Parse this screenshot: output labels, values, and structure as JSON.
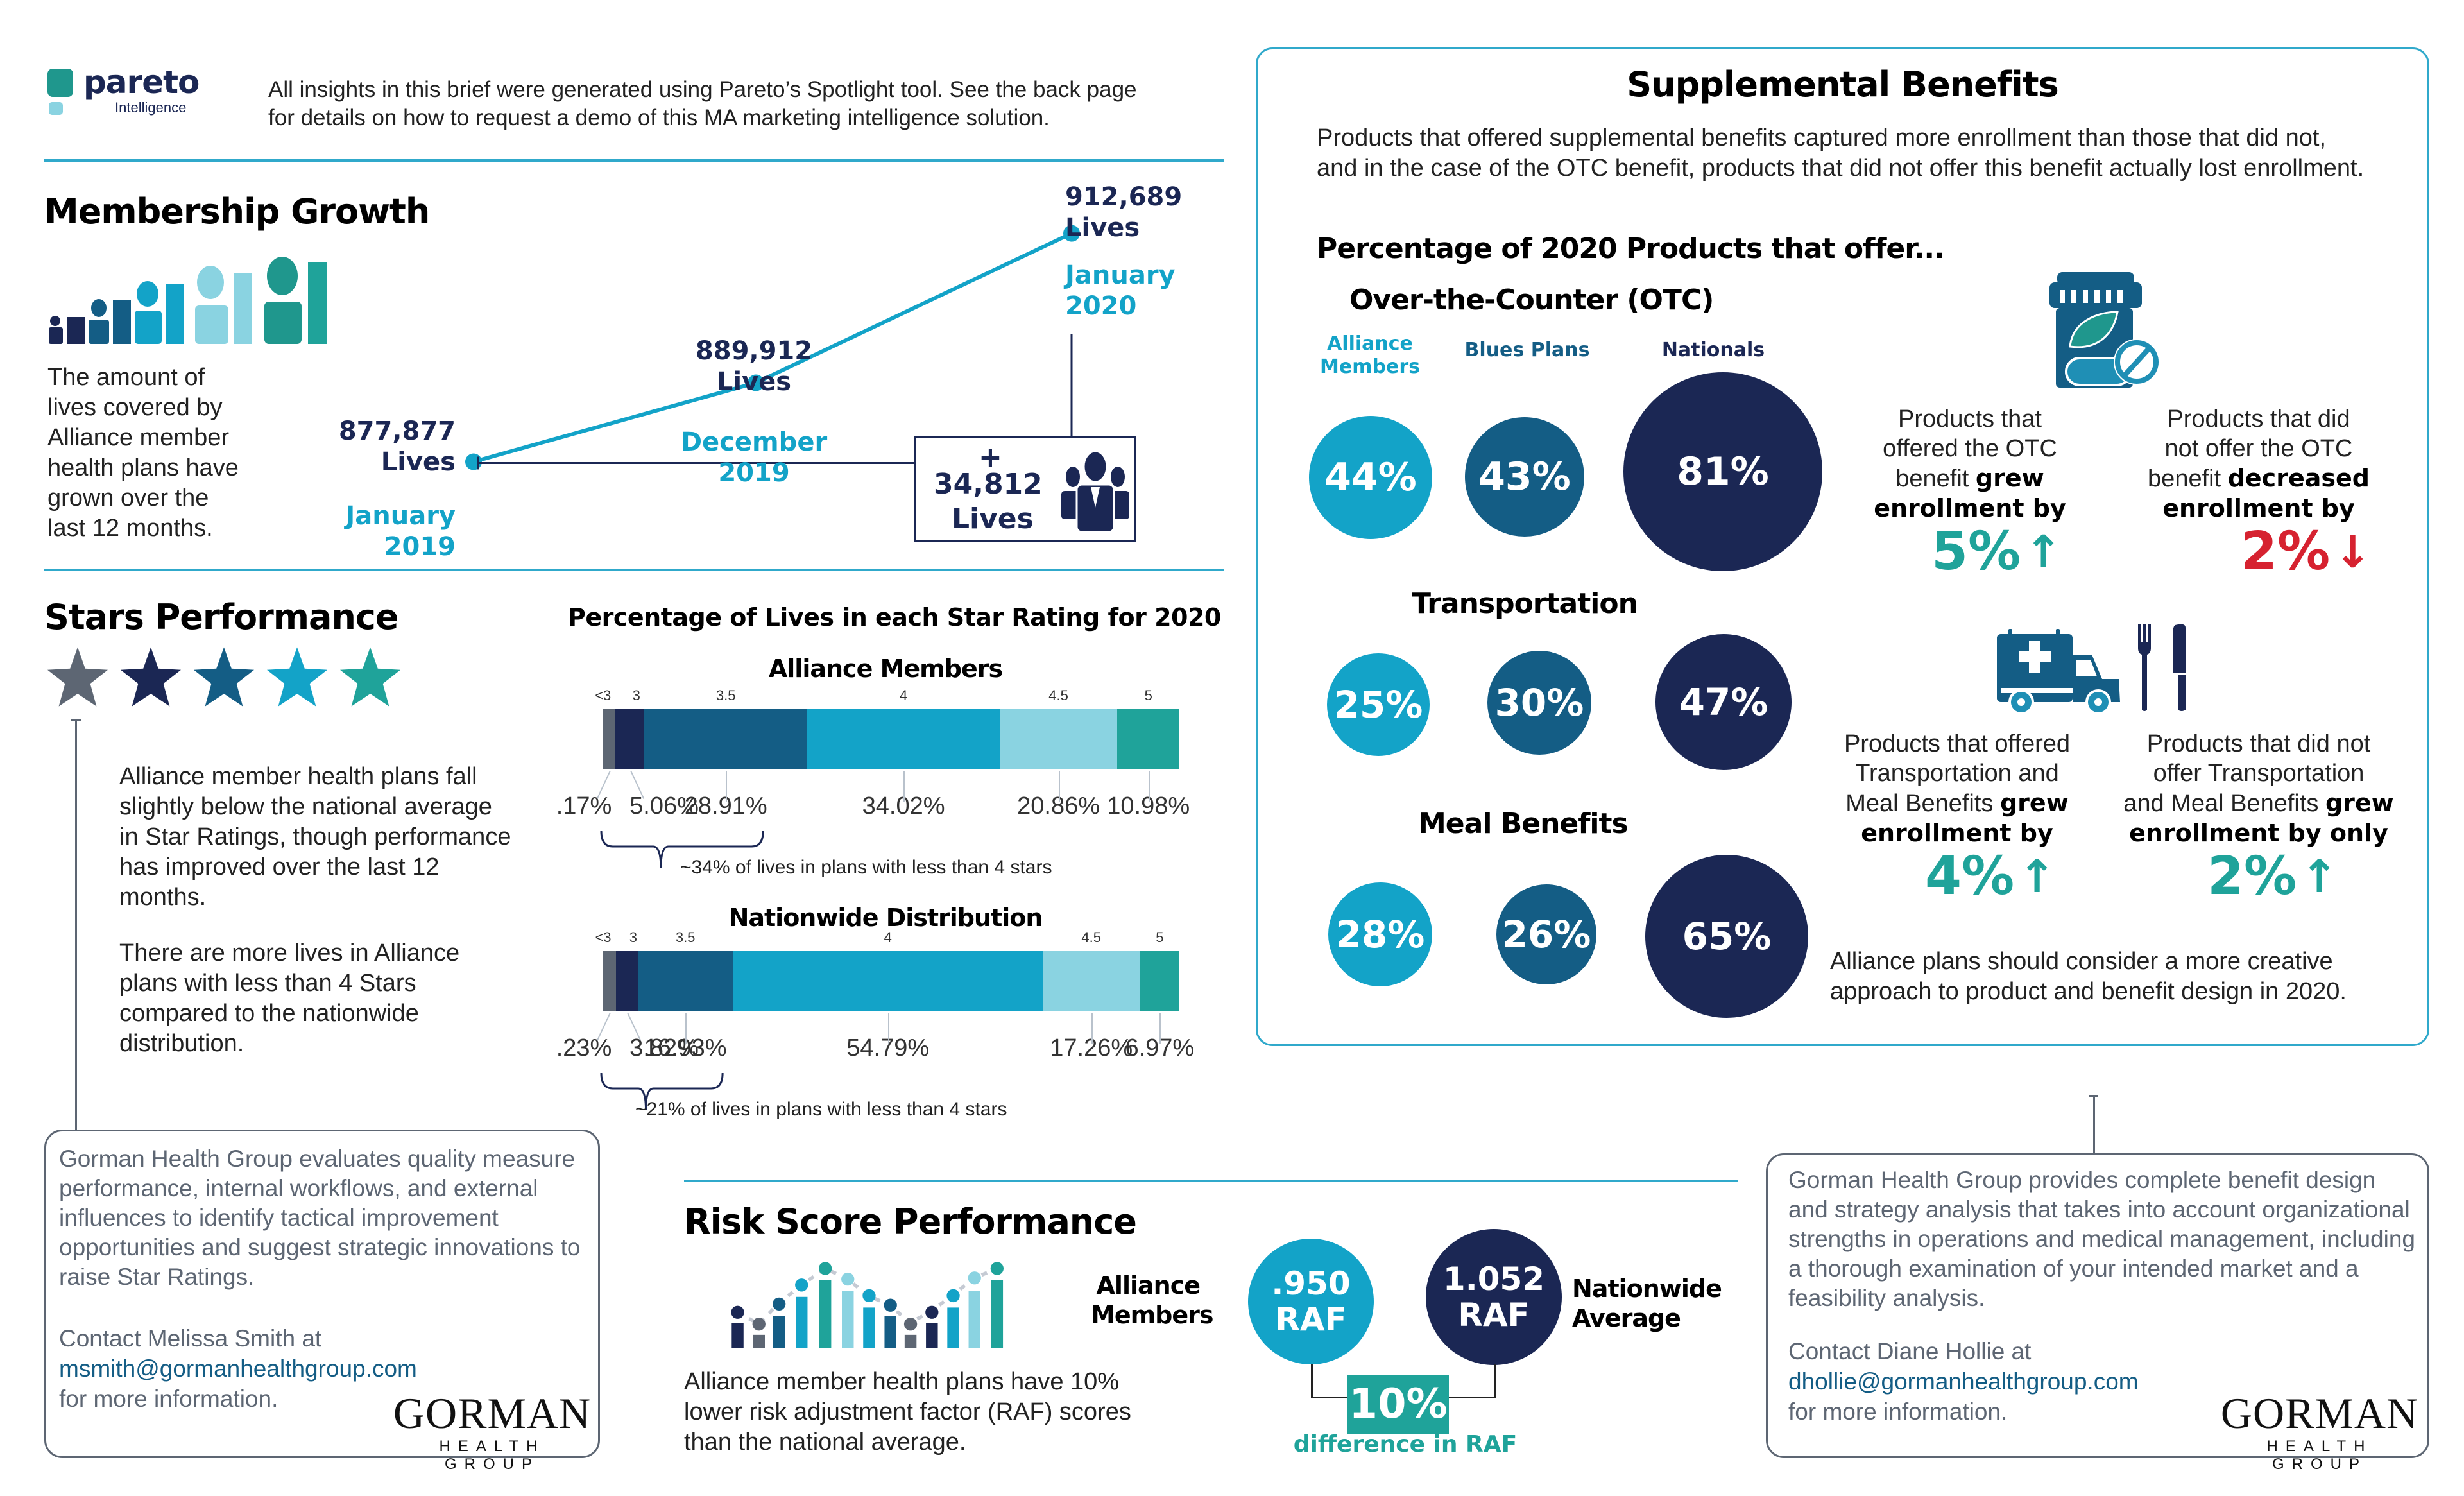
{
  "header": {
    "logo_name": "pareto",
    "logo_sub": "Intelligence",
    "intro_line1": "All insights in this brief were generated using Pareto’s Spotlight tool. See the back page",
    "intro_line2": "for details on how to request a demo of this MA marketing intelligence solution."
  },
  "membership": {
    "title": "Membership Growth",
    "description": [
      "The amount of",
      "lives covered by",
      "Alliance member",
      "health plans have",
      "grown over the",
      "last 12 months."
    ],
    "growth_box": {
      "plus": "+",
      "value": "34,812",
      "unit": "Lives"
    }
  },
  "chart_data": [
    {
      "type": "line",
      "title": "Membership Growth",
      "x": [
        "January 2019",
        "December 2019",
        "January 2020"
      ],
      "series": [
        {
          "name": "Lives",
          "values": [
            877877,
            889912,
            912689
          ]
        }
      ],
      "labels": [
        {
          "value": "877,877",
          "unit": "Lives",
          "date1": "January",
          "date2": "2019"
        },
        {
          "value": "889,912",
          "unit": "Lives",
          "date1": "December",
          "date2": "2019"
        },
        {
          "value": "912,689",
          "unit": "Lives",
          "date1": "January",
          "date2": "2020"
        }
      ],
      "ylim": [
        870000,
        915000
      ]
    },
    {
      "type": "bar",
      "orientation": "horizontal-stacked",
      "title": "Alliance Members",
      "categories": [
        "<3",
        "3",
        "3.5",
        "4",
        "4.5",
        "5"
      ],
      "values": [
        0.17,
        5.06,
        28.91,
        34.02,
        20.86,
        10.98
      ],
      "value_labels": [
        ".17%",
        "5.06%",
        "28.91%",
        "34.02%",
        "20.86%",
        "10.98%"
      ],
      "annotation": "~34% of lives in plans with less than 4 stars"
    },
    {
      "type": "bar",
      "orientation": "horizontal-stacked",
      "title": "Nationwide Distribution",
      "categories": [
        "<3",
        "3",
        "3.5",
        "4",
        "4.5",
        "5"
      ],
      "values": [
        0.23,
        3.82,
        16.93,
        54.79,
        17.26,
        6.97
      ],
      "value_labels": [
        ".23%",
        "3.82%",
        "16.93%",
        "54.79%",
        "17.26%",
        "6.97%"
      ],
      "annotation": "~21% of lives in plans with less than 4 stars"
    }
  ],
  "stars": {
    "title": "Stars Performance",
    "chart_title": "Percentage of Lives in each Star Rating for 2020",
    "star_colors": [
      "#5d6673",
      "#1b2754",
      "#145d85",
      "#13a3c8",
      "#1fa39a"
    ],
    "segment_colors": [
      "#5d6673",
      "#1b2754",
      "#145d85",
      "#13a3c8",
      "#8ad3e1",
      "#1fa39a"
    ],
    "paragraph1": "Alliance member health plans fall slightly below the national average in Star Ratings, though performance has improved over the last 12 months.",
    "paragraph2": "There are more lives in Alliance plans with less than 4 Stars compared to the nationwide distribution."
  },
  "gorman_left": {
    "body": "Gorman Health Group evaluates quality measure performance, internal workflows, and external influences to identify tactical improvement opportunities and suggest strategic innovations to raise Star Ratings.",
    "contact": "Contact Melissa Smith at",
    "email": "msmith@gormanhealthgroup.com",
    "more": "for more information.",
    "logo_main": "GORMAN",
    "logo_sub": "HEALTH GROUP"
  },
  "risk": {
    "title": "Risk Score Performance",
    "description": "Alliance member health plans have 10% lower risk adjustment factor (RAF) scores than the national average.",
    "alliance_label1": "Alliance",
    "alliance_label2": "Members",
    "alliance_value": ".950",
    "alliance_unit": "RAF",
    "national_value": "1.052",
    "national_unit": "RAF",
    "national_label1": "Nationwide",
    "national_label2": "Average",
    "diff_value": "10%",
    "diff_label": "difference in RAF"
  },
  "supplemental": {
    "title": "Supplemental Benefits",
    "intro": "Products that offered supplemental benefits captured more enrollment than those that did not, and in the case of the OTC benefit, products that did not offer this benefit actually lost enrollment.",
    "subtitle": "Percentage of 2020 Products that offer...",
    "columns": {
      "alliance1": "Alliance",
      "alliance2": "Members",
      "blues": "Blues Plans",
      "nationals": "Nationals"
    },
    "otc": {
      "title": "Over-the-Counter (OTC)",
      "alliance": "44%",
      "blues": "43%",
      "nationals": "81%"
    },
    "transportation": {
      "title": "Transportation",
      "alliance": "25%",
      "blues": "30%",
      "nationals": "47%"
    },
    "meal": {
      "title": "Meal Benefits",
      "alliance": "28%",
      "blues": "26%",
      "nationals": "65%"
    },
    "otc_offered": {
      "text1": "Products that",
      "text2": "offered the OTC",
      "text3": "benefit ",
      "bold3": "grew",
      "bold4": "enrollment by",
      "value": "5%",
      "direction": "up"
    },
    "otc_not_offered": {
      "text1": "Products that did",
      "text2": "not offer the OTC",
      "text3": "benefit ",
      "bold3": "decreased",
      "bold4": "enrollment by",
      "value": "2%",
      "direction": "down"
    },
    "tm_offered": {
      "text1": "Products that offered",
      "text2": "Transportation and",
      "text3": "Meal Benefits ",
      "bold3": "grew",
      "bold4": "enrollment by",
      "value": "4%",
      "direction": "up"
    },
    "tm_not_offered": {
      "text1": "Products that did not",
      "text2": "offer Transportation",
      "text3": "and Meal Benefits ",
      "bold3": "grew",
      "bold4": "enrollment by only",
      "value": "2%",
      "direction": "up"
    },
    "conclusion": "Alliance plans should consider a more creative approach to product and benefit design in 2020."
  },
  "gorman_right": {
    "body": "Gorman Health Group provides complete benefit design and strategy analysis that takes into account organizational strengths in operations and medical management, including a thorough examination of your intended market and a feasibility analysis.",
    "contact": "Contact Diane Hollie at",
    "email": "dhollie@gormanhealthgroup.com",
    "more": "for more information.",
    "logo_main": "GORMAN",
    "logo_sub": "HEALTH GROUP"
  }
}
